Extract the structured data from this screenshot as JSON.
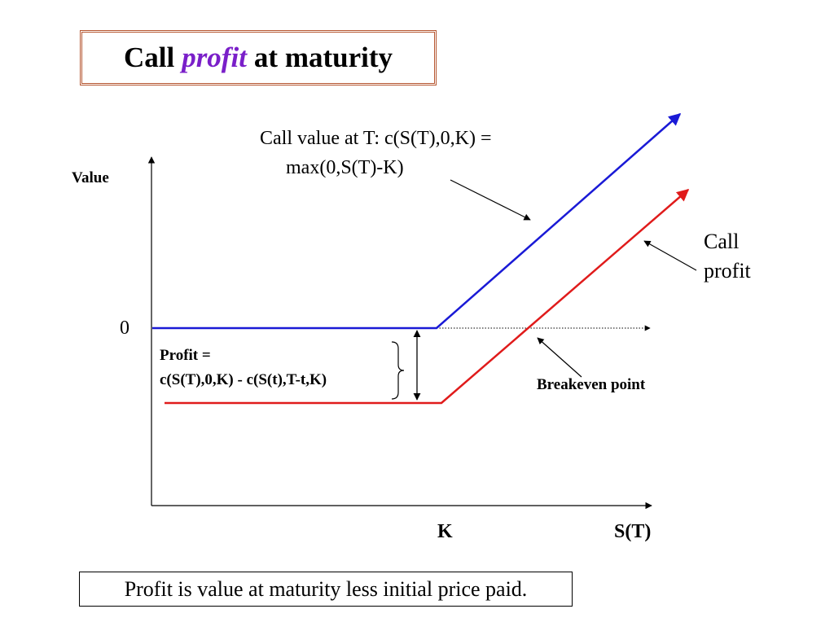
{
  "title": {
    "before": "Call",
    "emphasis": "profit",
    "after": "at maturity"
  },
  "labels": {
    "y_axis": "Value",
    "x_axis": "S(T)",
    "zero": "0",
    "strike": "K",
    "call_value_line1": "Call value at T:  c(S(T),0,K) =",
    "call_value_line2": "max(0,S(T)-K)",
    "call_profit_line1": "Call",
    "call_profit_line2": "profit",
    "profit_line1": "Profit =",
    "profit_line2": "c(S(T),0,K) - c(S(t),T-t,K)",
    "breakeven": "Breakeven point"
  },
  "note": "Profit is value at maturity less initial price paid.",
  "colors": {
    "value_line": "#1a1ad6",
    "profit_line": "#e01b1b",
    "title_border": "#b5552f",
    "emphasis": "#7a1fc9"
  }
}
